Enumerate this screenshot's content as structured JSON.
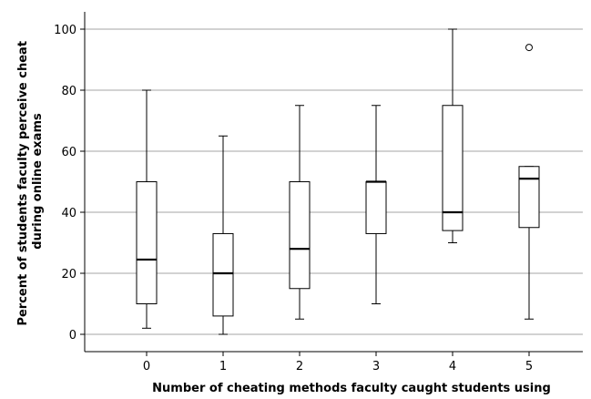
{
  "chart_data": {
    "type": "box",
    "xlabel": "Number of cheating methods faculty caught students using",
    "ylabel_lines": [
      "Percent of students faculty perceive cheat",
      "during online exams"
    ],
    "ylim": [
      -3,
      106
    ],
    "yticks": [
      0,
      20,
      40,
      60,
      80,
      100
    ],
    "grid": "horizontal",
    "legend": "none",
    "categories": [
      "0",
      "1",
      "2",
      "3",
      "4",
      "5"
    ],
    "boxes": [
      {
        "category": "0",
        "min": 2,
        "q1": 10,
        "median": 24.5,
        "q3": 50,
        "max": 80,
        "outliers": []
      },
      {
        "category": "1",
        "min": 0,
        "q1": 6,
        "median": 20,
        "q3": 33,
        "max": 65,
        "outliers": []
      },
      {
        "category": "2",
        "min": 5,
        "q1": 15,
        "median": 28,
        "q3": 50,
        "max": 75,
        "outliers": []
      },
      {
        "category": "3",
        "min": 10,
        "q1": 33,
        "median": 50,
        "q3": 50,
        "max": 75,
        "outliers": []
      },
      {
        "category": "4",
        "min": 30,
        "q1": 34,
        "median": 40,
        "q3": 75,
        "max": 100,
        "outliers": []
      },
      {
        "category": "5",
        "min": 5,
        "q1": 35,
        "median": 51,
        "q3": 55,
        "max": 55,
        "outliers": [
          94
        ]
      }
    ],
    "colors": {
      "box_fill": "#ffffff",
      "stroke": "#000000",
      "grid": "#a6a6a6"
    }
  }
}
